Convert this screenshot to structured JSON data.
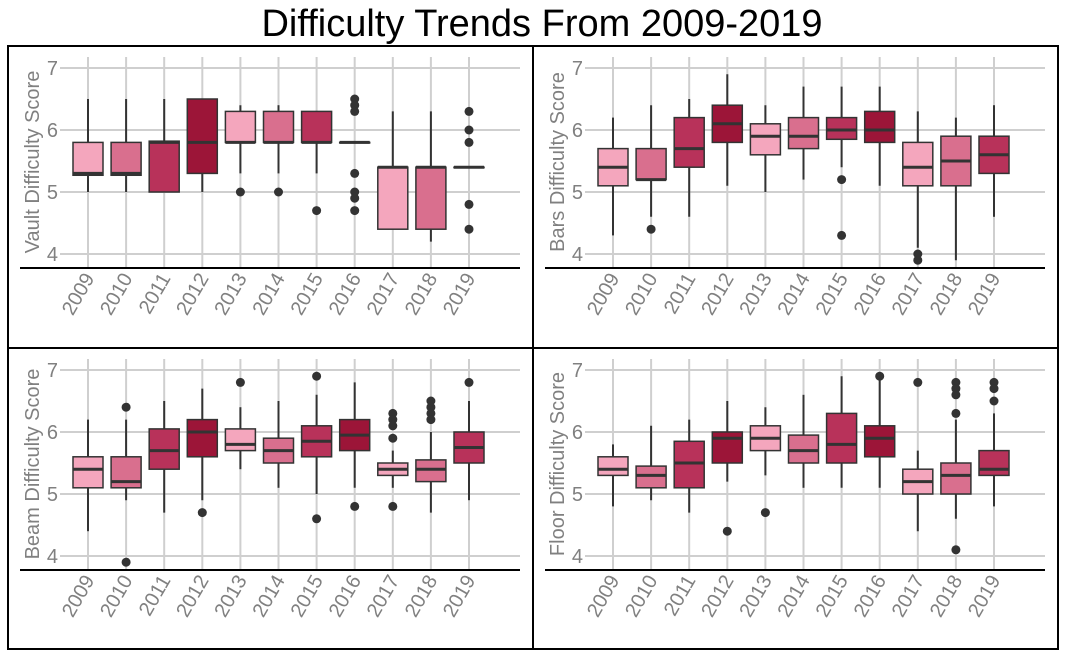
{
  "title": "Difficulty Trends From 2009-2019",
  "chart_data": [
    {
      "type": "box",
      "ylabel": "Vault Difficulty Score",
      "ylim": [
        3.75,
        7.2
      ],
      "yticks": [
        4,
        5,
        6,
        7
      ],
      "grid": true,
      "categories": [
        "2009",
        "2010",
        "2011",
        "2012",
        "2013",
        "2014",
        "2015",
        "2016",
        "2017",
        "2018",
        "2019"
      ],
      "boxes": [
        {
          "low": 5.0,
          "q1": 5.27,
          "median": 5.3,
          "q3": 5.8,
          "high": 6.5,
          "outliers": [],
          "color": "#f4a6bd"
        },
        {
          "low": 5.0,
          "q1": 5.27,
          "median": 5.3,
          "q3": 5.8,
          "high": 6.5,
          "outliers": [],
          "color": "#d96f8e"
        },
        {
          "low": 5.0,
          "q1": 5.0,
          "median": 5.8,
          "q3": 5.82,
          "high": 6.5,
          "outliers": [],
          "color": "#b8325a"
        },
        {
          "low": 5.0,
          "q1": 5.3,
          "median": 5.8,
          "q3": 6.5,
          "high": 6.5,
          "outliers": [],
          "color": "#9c1538"
        },
        {
          "low": 5.3,
          "q1": 5.8,
          "median": 5.8,
          "q3": 6.3,
          "high": 6.4,
          "outliers": [
            5.0
          ],
          "color": "#f4a6bd"
        },
        {
          "low": 5.3,
          "q1": 5.8,
          "median": 5.8,
          "q3": 6.3,
          "high": 6.4,
          "outliers": [
            5.0
          ],
          "color": "#d96f8e"
        },
        {
          "low": 5.3,
          "q1": 5.8,
          "median": 5.8,
          "q3": 6.3,
          "high": 6.3,
          "outliers": [
            4.7
          ],
          "color": "#b8325a"
        },
        {
          "low": 5.8,
          "q1": 5.8,
          "median": 5.8,
          "q3": 5.8,
          "high": 5.8,
          "outliers": [
            6.5,
            6.4,
            6.3,
            5.3,
            5.0,
            4.9,
            4.7
          ],
          "color": "#9c1538"
        },
        {
          "low": 4.4,
          "q1": 4.4,
          "median": 5.4,
          "q3": 5.4,
          "high": 6.3,
          "outliers": [],
          "color": "#f4a6bd"
        },
        {
          "low": 4.2,
          "q1": 4.4,
          "median": 5.4,
          "q3": 5.4,
          "high": 6.3,
          "outliers": [],
          "color": "#d96f8e"
        },
        {
          "low": 5.4,
          "q1": 5.4,
          "median": 5.4,
          "q3": 5.4,
          "high": 5.4,
          "outliers": [
            6.3,
            6.0,
            5.8,
            4.8,
            4.4
          ],
          "color": "#b8325a"
        }
      ]
    },
    {
      "type": "box",
      "ylabel": "Bars Difficulty Score",
      "ylim": [
        3.75,
        7.2
      ],
      "yticks": [
        4,
        5,
        6,
        7
      ],
      "grid": true,
      "categories": [
        "2009",
        "2010",
        "2011",
        "2012",
        "2013",
        "2014",
        "2015",
        "2016",
        "2017",
        "2018",
        "2019"
      ],
      "boxes": [
        {
          "low": 4.3,
          "q1": 5.1,
          "median": 5.4,
          "q3": 5.7,
          "high": 6.2,
          "outliers": [],
          "color": "#f4a6bd"
        },
        {
          "low": 4.6,
          "q1": 5.2,
          "median": 5.2,
          "q3": 5.7,
          "high": 6.4,
          "outliers": [
            4.4
          ],
          "color": "#d96f8e"
        },
        {
          "low": 4.6,
          "q1": 5.4,
          "median": 5.7,
          "q3": 6.2,
          "high": 6.5,
          "outliers": [],
          "color": "#b8325a"
        },
        {
          "low": 5.1,
          "q1": 5.8,
          "median": 6.1,
          "q3": 6.4,
          "high": 6.9,
          "outliers": [],
          "color": "#9c1538"
        },
        {
          "low": 5.0,
          "q1": 5.6,
          "median": 5.9,
          "q3": 6.1,
          "high": 6.4,
          "outliers": [],
          "color": "#f4a6bd"
        },
        {
          "low": 5.2,
          "q1": 5.7,
          "median": 5.9,
          "q3": 6.2,
          "high": 6.7,
          "outliers": [],
          "color": "#d96f8e"
        },
        {
          "low": 5.4,
          "q1": 5.85,
          "median": 6.0,
          "q3": 6.2,
          "high": 6.7,
          "outliers": [
            5.2,
            4.3
          ],
          "color": "#b8325a"
        },
        {
          "low": 5.1,
          "q1": 5.8,
          "median": 6.0,
          "q3": 6.3,
          "high": 6.7,
          "outliers": [],
          "color": "#9c1538"
        },
        {
          "low": 4.1,
          "q1": 5.1,
          "median": 5.4,
          "q3": 5.8,
          "high": 6.3,
          "outliers": [
            4.0,
            3.9
          ],
          "color": "#f4a6bd"
        },
        {
          "low": 3.9,
          "q1": 5.1,
          "median": 5.5,
          "q3": 5.9,
          "high": 6.2,
          "outliers": [],
          "color": "#d96f8e"
        },
        {
          "low": 4.6,
          "q1": 5.3,
          "median": 5.6,
          "q3": 5.9,
          "high": 6.4,
          "outliers": [],
          "color": "#b8325a"
        }
      ]
    },
    {
      "type": "box",
      "ylabel": "Beam Difficulty Score",
      "ylim": [
        3.75,
        7.2
      ],
      "yticks": [
        4,
        5,
        6,
        7
      ],
      "grid": true,
      "categories": [
        "2009",
        "2010",
        "2011",
        "2012",
        "2013",
        "2014",
        "2015",
        "2016",
        "2017",
        "2018",
        "2019"
      ],
      "boxes": [
        {
          "low": 4.4,
          "q1": 5.1,
          "median": 5.4,
          "q3": 5.6,
          "high": 6.2,
          "outliers": [],
          "color": "#f4a6bd"
        },
        {
          "low": 4.9,
          "q1": 5.1,
          "median": 5.2,
          "q3": 5.6,
          "high": 6.2,
          "outliers": [
            6.4,
            3.9
          ],
          "color": "#d96f8e"
        },
        {
          "low": 4.7,
          "q1": 5.4,
          "median": 5.7,
          "q3": 6.05,
          "high": 6.5,
          "outliers": [],
          "color": "#b8325a"
        },
        {
          "low": 4.9,
          "q1": 5.6,
          "median": 6.0,
          "q3": 6.2,
          "high": 6.7,
          "outliers": [
            4.7
          ],
          "color": "#9c1538"
        },
        {
          "low": 5.4,
          "q1": 5.7,
          "median": 5.8,
          "q3": 6.05,
          "high": 6.4,
          "outliers": [
            6.8
          ],
          "color": "#f4a6bd"
        },
        {
          "low": 5.1,
          "q1": 5.5,
          "median": 5.7,
          "q3": 5.9,
          "high": 6.5,
          "outliers": [],
          "color": "#d96f8e"
        },
        {
          "low": 5.0,
          "q1": 5.6,
          "median": 5.85,
          "q3": 6.1,
          "high": 6.6,
          "outliers": [
            6.9,
            4.6
          ],
          "color": "#b8325a"
        },
        {
          "low": 5.1,
          "q1": 5.7,
          "median": 5.95,
          "q3": 6.2,
          "high": 6.8,
          "outliers": [
            4.8
          ],
          "color": "#9c1538"
        },
        {
          "low": 5.1,
          "q1": 5.3,
          "median": 5.4,
          "q3": 5.5,
          "high": 5.7,
          "outliers": [
            6.3,
            6.2,
            6.1,
            5.9,
            4.8
          ],
          "color": "#f4a6bd"
        },
        {
          "low": 4.7,
          "q1": 5.2,
          "median": 5.4,
          "q3": 5.55,
          "high": 6.0,
          "outliers": [
            6.5,
            6.4,
            6.3,
            6.2
          ],
          "color": "#d96f8e"
        },
        {
          "low": 4.9,
          "q1": 5.5,
          "median": 5.75,
          "q3": 6.0,
          "high": 6.5,
          "outliers": [
            6.8
          ],
          "color": "#b8325a"
        }
      ]
    },
    {
      "type": "box",
      "ylabel": "Floor Difficulty Score",
      "ylim": [
        3.75,
        7.2
      ],
      "yticks": [
        4,
        5,
        6,
        7
      ],
      "grid": true,
      "categories": [
        "2009",
        "2010",
        "2011",
        "2012",
        "2013",
        "2014",
        "2015",
        "2016",
        "2017",
        "2018",
        "2019"
      ],
      "boxes": [
        {
          "low": 4.8,
          "q1": 5.3,
          "median": 5.4,
          "q3": 5.6,
          "high": 5.8,
          "outliers": [],
          "color": "#f4a6bd"
        },
        {
          "low": 4.9,
          "q1": 5.1,
          "median": 5.3,
          "q3": 5.45,
          "high": 6.1,
          "outliers": [],
          "color": "#d96f8e"
        },
        {
          "low": 4.7,
          "q1": 5.1,
          "median": 5.5,
          "q3": 5.85,
          "high": 6.2,
          "outliers": [],
          "color": "#b8325a"
        },
        {
          "low": 5.2,
          "q1": 5.5,
          "median": 5.9,
          "q3": 6.0,
          "high": 6.5,
          "outliers": [
            4.4
          ],
          "color": "#9c1538"
        },
        {
          "low": 5.3,
          "q1": 5.7,
          "median": 5.9,
          "q3": 6.1,
          "high": 6.4,
          "outliers": [
            4.7
          ],
          "color": "#f4a6bd"
        },
        {
          "low": 5.1,
          "q1": 5.5,
          "median": 5.7,
          "q3": 5.95,
          "high": 6.6,
          "outliers": [],
          "color": "#d96f8e"
        },
        {
          "low": 5.1,
          "q1": 5.5,
          "median": 5.8,
          "q3": 6.3,
          "high": 6.9,
          "outliers": [],
          "color": "#b8325a"
        },
        {
          "low": 5.1,
          "q1": 5.6,
          "median": 5.9,
          "q3": 6.1,
          "high": 6.9,
          "outliers": [
            6.9
          ],
          "color": "#9c1538"
        },
        {
          "low": 4.4,
          "q1": 5.0,
          "median": 5.2,
          "q3": 5.4,
          "high": 5.7,
          "outliers": [
            6.8
          ],
          "color": "#f4a6bd"
        },
        {
          "low": 4.6,
          "q1": 5.0,
          "median": 5.3,
          "q3": 5.5,
          "high": 6.2,
          "outliers": [
            6.8,
            6.7,
            6.6,
            6.3,
            4.1
          ],
          "color": "#d96f8e"
        },
        {
          "low": 4.8,
          "q1": 5.3,
          "median": 5.4,
          "q3": 5.7,
          "high": 6.3,
          "outliers": [
            6.8,
            6.7,
            6.5
          ],
          "color": "#b8325a"
        }
      ]
    }
  ]
}
